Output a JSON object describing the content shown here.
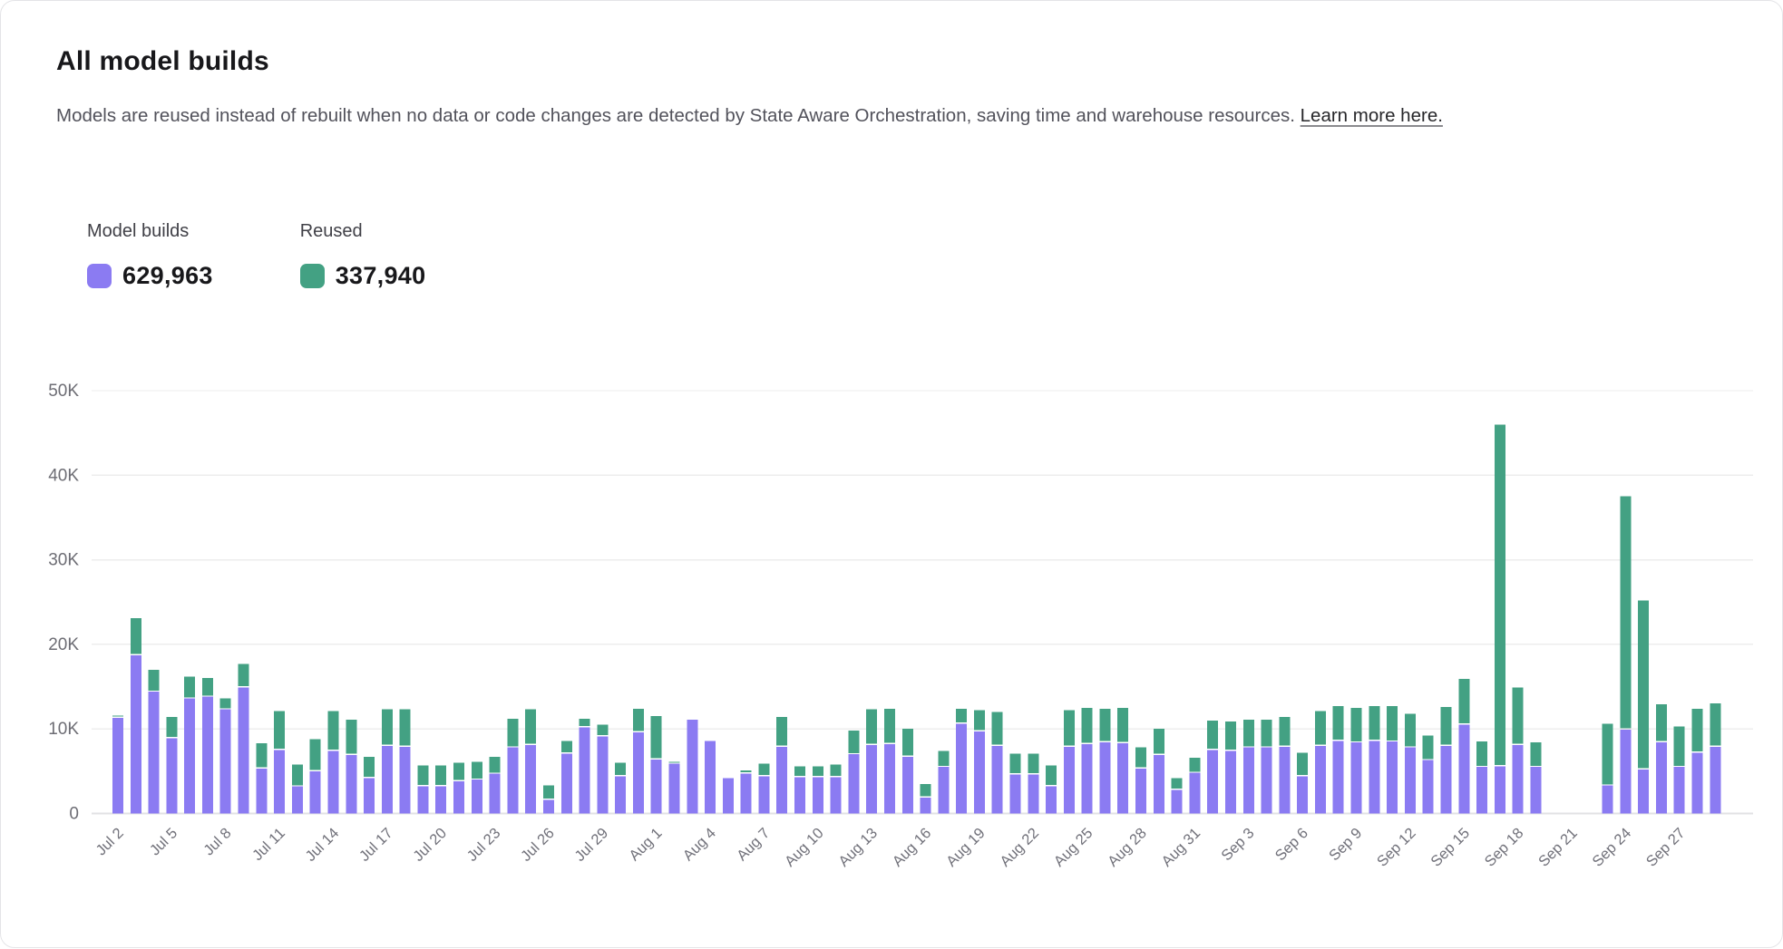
{
  "page": {
    "title": "All model builds",
    "description_before_link": "Models are reused instead of rebuilt when no data or code changes are detected by State Aware Orchestration, saving time and warehouse resources. ",
    "link_text": "Learn more here."
  },
  "legend": {
    "model_builds_label": "Model builds",
    "model_builds_total": "629,963",
    "reused_label": "Reused",
    "reused_total": "337,940"
  },
  "colors": {
    "model_builds": "#8b7bf2",
    "reused": "#43a183",
    "grid": "#ededed",
    "baseline": "#e2e2e4",
    "axis_text": "#71717a"
  },
  "chart_data": {
    "type": "bar",
    "stacked": true,
    "title": "All model builds",
    "xlabel": "",
    "ylabel": "",
    "ylim": [
      0,
      50000
    ],
    "y_ticks": [
      0,
      10000,
      20000,
      30000,
      40000,
      50000
    ],
    "y_tick_labels": [
      "0",
      "10K",
      "20K",
      "30K",
      "40K",
      "50K"
    ],
    "grid": true,
    "legend_position": "top-left",
    "x_tick_every": 3,
    "categories": [
      "Jul 2",
      "Jul 3",
      "Jul 4",
      "Jul 5",
      "Jul 6",
      "Jul 7",
      "Jul 8",
      "Jul 9",
      "Jul 10",
      "Jul 11",
      "Jul 12",
      "Jul 13",
      "Jul 14",
      "Jul 15",
      "Jul 16",
      "Jul 17",
      "Jul 18",
      "Jul 19",
      "Jul 20",
      "Jul 21",
      "Jul 22",
      "Jul 23",
      "Jul 24",
      "Jul 25",
      "Jul 26",
      "Jul 27",
      "Jul 28",
      "Jul 29",
      "Jul 30",
      "Jul 31",
      "Aug 1",
      "Aug 2",
      "Aug 3",
      "Aug 4",
      "Aug 5",
      "Aug 6",
      "Aug 7",
      "Aug 8",
      "Aug 9",
      "Aug 10",
      "Aug 11",
      "Aug 12",
      "Aug 13",
      "Aug 14",
      "Aug 15",
      "Aug 16",
      "Aug 17",
      "Aug 18",
      "Aug 19",
      "Aug 20",
      "Aug 21",
      "Aug 22",
      "Aug 23",
      "Aug 24",
      "Aug 25",
      "Aug 26",
      "Aug 27",
      "Aug 28",
      "Aug 29",
      "Aug 30",
      "Aug 31",
      "Sep 1",
      "Sep 2",
      "Sep 3",
      "Sep 4",
      "Sep 5",
      "Sep 6",
      "Sep 7",
      "Sep 8",
      "Sep 9",
      "Sep 10",
      "Sep 11",
      "Sep 12",
      "Sep 13",
      "Sep 14",
      "Sep 15",
      "Sep 16",
      "Sep 17",
      "Sep 18",
      "Sep 19",
      "Sep 20",
      "Sep 21",
      "Sep 22",
      "Sep 23",
      "Sep 24",
      "Sep 25",
      "Sep 26",
      "Sep 27",
      "Sep 28",
      "Sep 29"
    ],
    "series": [
      {
        "name": "Model builds",
        "color_key": "model_builds",
        "values": [
          11300,
          18700,
          14400,
          8900,
          13600,
          13800,
          12300,
          14900,
          5300,
          7500,
          3200,
          5000,
          7400,
          6900,
          4200,
          8000,
          7900,
          3200,
          3200,
          3800,
          4000,
          4700,
          7800,
          8100,
          1600,
          7100,
          10200,
          9100,
          4400,
          9600,
          6400,
          5900,
          11100,
          8600,
          4200,
          4700,
          4400,
          7900,
          4300,
          4300,
          4300,
          7000,
          8100,
          8200,
          6700,
          1900,
          5500,
          10600,
          9700,
          8000,
          4600,
          4600,
          3200,
          7900,
          8200,
          8400,
          8300,
          5300,
          6900,
          2800,
          4800,
          7500,
          7400,
          7800,
          7800,
          7900,
          4400,
          8000,
          8600,
          8400,
          8600,
          8500,
          7800,
          6300,
          8000,
          10500,
          5500,
          5600,
          8100,
          5500,
          0,
          0,
          0,
          3300,
          9900,
          5200,
          8400,
          5500,
          7200,
          7900
        ]
      },
      {
        "name": "Reused",
        "color_key": "reused",
        "values": [
          300,
          4400,
          2600,
          2500,
          2600,
          2200,
          1300,
          2800,
          3000,
          4600,
          2600,
          3800,
          4700,
          4200,
          2500,
          4300,
          4400,
          2500,
          2500,
          2200,
          2100,
          2000,
          3400,
          4200,
          1700,
          1500,
          1000,
          1400,
          1600,
          2800,
          5100,
          200,
          0,
          0,
          0,
          400,
          1500,
          3500,
          1300,
          1300,
          1500,
          2800,
          4200,
          4200,
          3300,
          1600,
          1900,
          1800,
          2500,
          4000,
          2500,
          2500,
          2500,
          4300,
          4300,
          4000,
          4200,
          2500,
          3100,
          1400,
          1800,
          3500,
          3500,
          3300,
          3300,
          3500,
          2800,
          4100,
          4100,
          4100,
          4100,
          4200,
          4000,
          2900,
          4600,
          5400,
          3000,
          40400,
          6800,
          2900,
          0,
          0,
          0,
          7300,
          27600,
          20000,
          4500,
          4800,
          5200,
          5100
        ]
      }
    ]
  }
}
